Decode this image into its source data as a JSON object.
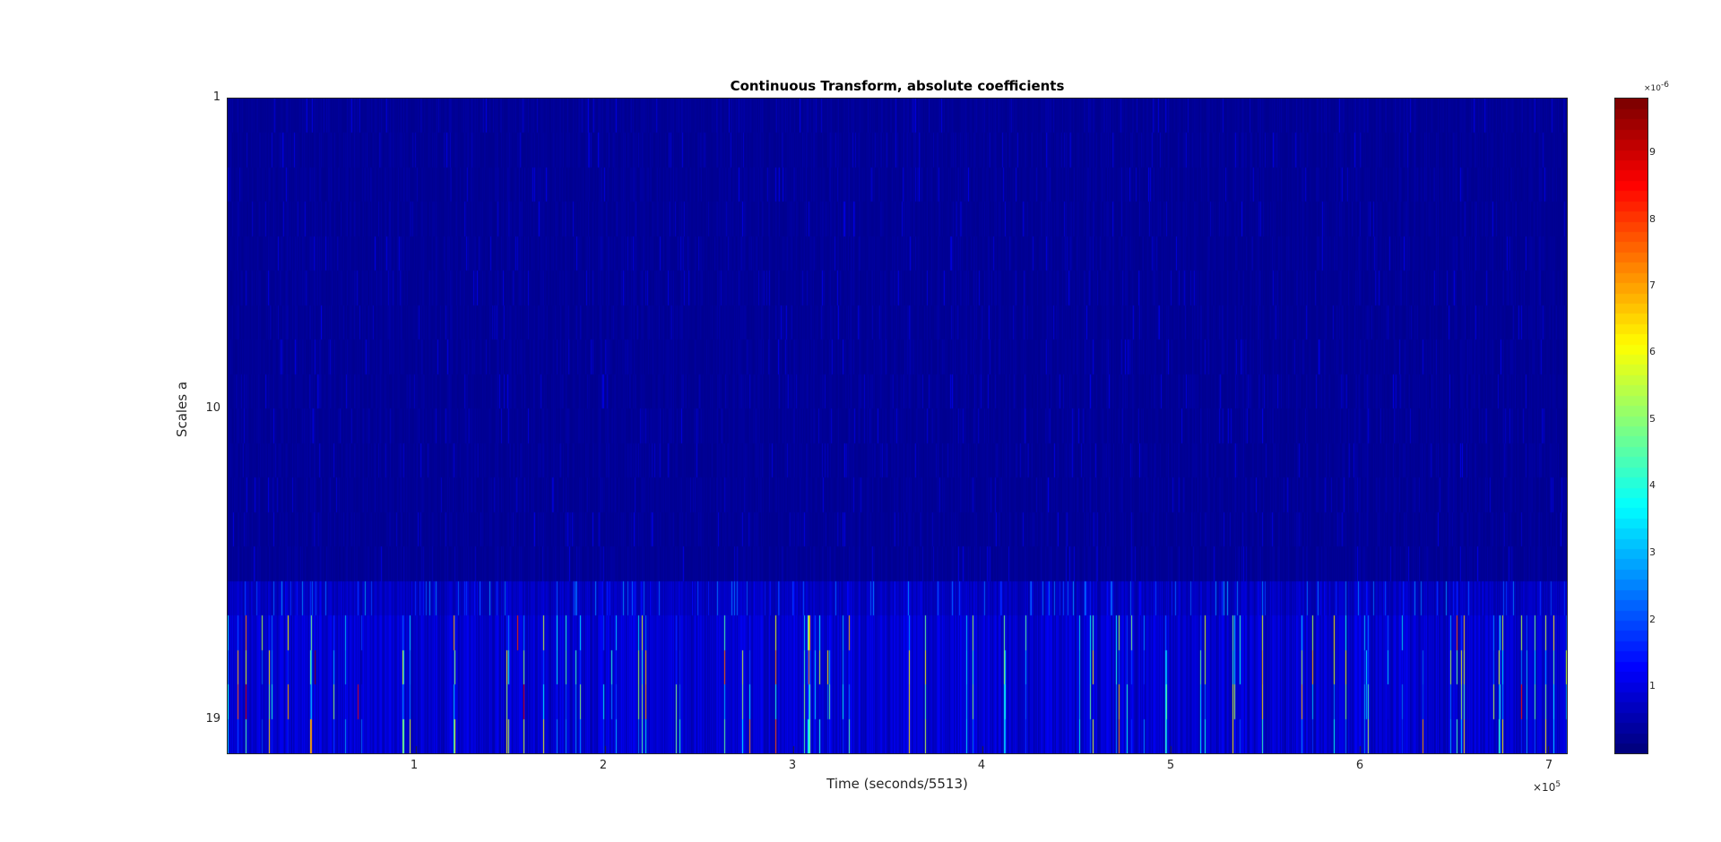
{
  "chart_data": {
    "type": "heatmap",
    "title": "Continuous Transform, absolute coefficients",
    "xlabel": "Time (seconds/5513)",
    "ylabel": "Scales a",
    "x_ticks": [
      "1",
      "2",
      "3",
      "4",
      "5",
      "6",
      "7"
    ],
    "x_exponent_base": "×10",
    "x_exponent": "5",
    "y_ticks": [
      "1",
      "10",
      "19"
    ],
    "xlim": [
      0,
      710000
    ],
    "ylim": [
      1,
      20
    ],
    "colorbar": {
      "ticks": [
        "1",
        "2",
        "3",
        "4",
        "5",
        "6",
        "7",
        "8",
        "9"
      ],
      "exponent_base": "×10",
      "exponent": "-6",
      "range": [
        0,
        9.8e-06
      ],
      "colormap": "jet"
    },
    "description_values": {
      "background_level": 2.5e-07,
      "high_scale_band_start": 15,
      "peak_value": 9.8e-06
    }
  }
}
